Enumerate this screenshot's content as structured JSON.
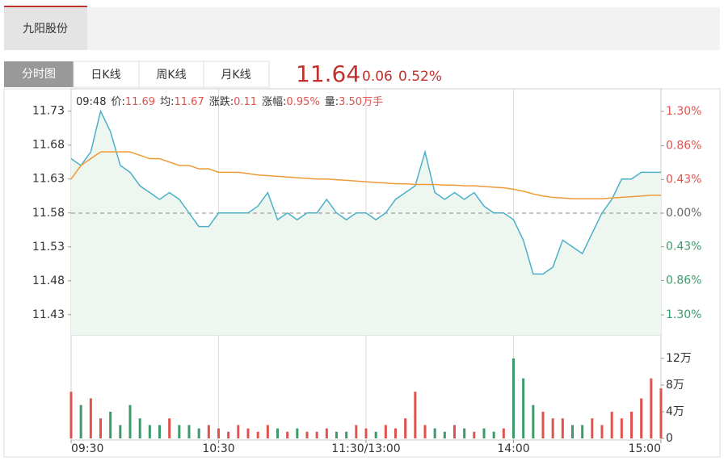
{
  "stock_tab": "九阳股份",
  "view_tabs": [
    "分时图",
    "日K线",
    "周K线",
    "月K线"
  ],
  "quote": {
    "price": "11.64",
    "change": "0.06",
    "change_pct": "0.52%"
  },
  "info": {
    "time": "09:48",
    "items": [
      {
        "label": "价:",
        "value": "11.69"
      },
      {
        "label": "均:",
        "value": "11.67"
      },
      {
        "label": "涨跌:",
        "value": "0.11"
      },
      {
        "label": "涨幅:",
        "value": "0.95%"
      },
      {
        "label": "量:",
        "value": "3.50万手"
      }
    ]
  },
  "chart_data": {
    "type": "line",
    "categories": [
      "09:30",
      null,
      null,
      null,
      null,
      null,
      null,
      null,
      null,
      null,
      null,
      null,
      null,
      null,
      null,
      "10:30",
      null,
      null,
      null,
      null,
      null,
      null,
      null,
      null,
      null,
      null,
      null,
      null,
      null,
      null,
      "11:30/13:00",
      null,
      null,
      null,
      null,
      null,
      null,
      null,
      null,
      null,
      null,
      null,
      null,
      null,
      null,
      "14:00",
      null,
      null,
      null,
      null,
      null,
      null,
      null,
      null,
      null,
      null,
      null,
      null,
      null,
      null,
      "15:00"
    ],
    "series": [
      {
        "color": "#4cb0c9",
        "values": [
          11.66,
          11.65,
          11.67,
          11.73,
          11.7,
          11.65,
          11.64,
          11.62,
          11.61,
          11.6,
          11.61,
          11.6,
          11.58,
          11.56,
          11.56,
          11.58,
          11.58,
          11.58,
          11.58,
          11.59,
          11.61,
          11.57,
          11.58,
          11.57,
          11.58,
          11.58,
          11.6,
          11.58,
          11.57,
          11.58,
          11.58,
          11.57,
          11.58,
          11.6,
          11.61,
          11.62,
          11.67,
          11.61,
          11.6,
          11.61,
          11.6,
          11.61,
          11.59,
          11.58,
          11.58,
          11.57,
          11.54,
          11.49,
          11.49,
          11.5,
          11.54,
          11.53,
          11.52,
          11.55,
          11.58,
          11.6,
          11.63,
          11.63,
          11.64,
          11.64,
          11.64
        ]
      },
      {
        "color": "#f09a37",
        "values": [
          11.63,
          11.65,
          11.66,
          11.67,
          11.67,
          11.67,
          11.67,
          11.665,
          11.66,
          11.66,
          11.655,
          11.65,
          11.65,
          11.645,
          11.645,
          11.64,
          11.64,
          11.64,
          11.638,
          11.636,
          11.635,
          11.634,
          11.633,
          11.632,
          11.631,
          11.63,
          11.63,
          11.629,
          11.628,
          11.627,
          11.626,
          11.625,
          11.624,
          11.623,
          11.623,
          11.622,
          11.622,
          11.622,
          11.621,
          11.621,
          11.62,
          11.62,
          11.619,
          11.618,
          11.617,
          11.615,
          11.612,
          11.608,
          11.605,
          11.603,
          11.602,
          11.601,
          11.601,
          11.601,
          11.601,
          11.602,
          11.603,
          11.604,
          11.605,
          11.606,
          11.606
        ]
      }
    ],
    "area_color": "#eef6f0",
    "ylim": [
      11.4,
      11.763
    ],
    "yticks": [
      11.73,
      11.68,
      11.63,
      11.58,
      11.53,
      11.48,
      11.43
    ],
    "y2lim": [
      -1.558,
      1.589
    ],
    "y2ticks": [
      {
        "value": 1.3,
        "label": "1.30%"
      },
      {
        "value": 0.86,
        "label": "0.86%"
      },
      {
        "value": 0.43,
        "label": "0.43%"
      },
      {
        "value": 0,
        "label": "0.00%"
      },
      {
        "value": -0.43,
        "label": "0.43%"
      },
      {
        "value": -0.86,
        "label": "0.86%"
      },
      {
        "value": -1.3,
        "label": "1.30%"
      }
    ],
    "up_color": "#e0524b",
    "down_color": "#3c9a6a",
    "volume": {
      "type": "bar",
      "values": [
        7,
        5,
        6,
        3,
        4,
        2,
        5,
        3,
        2,
        2,
        3,
        2,
        2,
        1.5,
        2,
        1.5,
        1,
        2,
        1.5,
        1,
        2,
        1.5,
        1,
        1.5,
        1,
        1,
        1.5,
        1,
        1,
        2,
        1.5,
        1,
        2,
        1.5,
        3,
        7,
        2,
        1.5,
        1,
        2,
        1.5,
        1,
        1.5,
        1,
        1.5,
        12,
        9,
        5,
        4,
        3,
        3,
        2,
        2,
        3,
        2,
        4,
        3,
        4,
        6,
        9,
        7.5
      ],
      "ylim": [
        0,
        15.5
      ],
      "yticks": [
        {
          "value": 12,
          "label": "12万"
        },
        {
          "value": 8,
          "label": "8万"
        },
        {
          "value": 4,
          "label": "4万"
        },
        0
      ]
    }
  }
}
